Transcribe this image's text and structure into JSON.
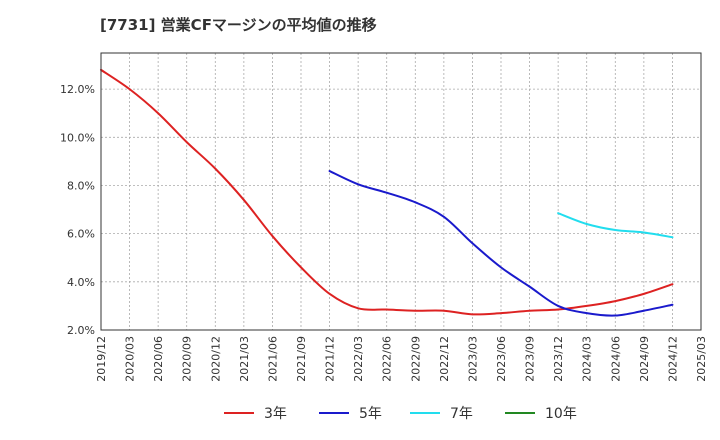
{
  "chart_data": {
    "type": "line",
    "title": "[7731]  営業CFマージンの平均値の推移",
    "xlabel": "",
    "ylabel": "",
    "x_ticks": [
      "2019/12",
      "2020/03",
      "2020/06",
      "2020/09",
      "2020/12",
      "2021/03",
      "2021/06",
      "2021/09",
      "2021/12",
      "2022/03",
      "2022/06",
      "2022/09",
      "2022/12",
      "2023/03",
      "2023/06",
      "2023/09",
      "2023/12",
      "2024/03",
      "2024/06",
      "2024/09",
      "2024/12",
      "2025/03"
    ],
    "y_ticks": [
      "2.0%",
      "4.0%",
      "6.0%",
      "8.0%",
      "10.0%",
      "12.0%"
    ],
    "ylim": [
      2.0,
      13.5
    ],
    "grid": true,
    "legend_position": "bottom",
    "series": [
      {
        "name": "3年",
        "color": "#dd2222",
        "x": [
          "2019/12",
          "2020/03",
          "2020/06",
          "2020/09",
          "2020/12",
          "2021/03",
          "2021/06",
          "2021/09",
          "2021/12",
          "2022/03",
          "2022/06",
          "2022/09",
          "2022/12",
          "2023/03",
          "2023/06",
          "2023/09",
          "2023/12",
          "2024/03",
          "2024/06",
          "2024/09",
          "2024/12"
        ],
        "values": [
          12.8,
          12.0,
          11.0,
          9.8,
          8.7,
          7.4,
          5.9,
          4.6,
          3.5,
          2.9,
          2.85,
          2.8,
          2.8,
          2.65,
          2.7,
          2.8,
          2.85,
          3.0,
          3.2,
          3.5,
          3.9
        ]
      },
      {
        "name": "5年",
        "color": "#1a1acc",
        "x": [
          "2021/12",
          "2022/03",
          "2022/06",
          "2022/09",
          "2022/12",
          "2023/03",
          "2023/06",
          "2023/09",
          "2023/12",
          "2024/03",
          "2024/06",
          "2024/09",
          "2024/12"
        ],
        "values": [
          8.6,
          8.05,
          7.7,
          7.3,
          6.7,
          5.6,
          4.6,
          3.8,
          3.0,
          2.7,
          2.6,
          2.8,
          3.05
        ]
      },
      {
        "name": "7年",
        "color": "#22ddee",
        "x": [
          "2023/12",
          "2024/03",
          "2024/06",
          "2024/09",
          "2024/12"
        ],
        "values": [
          6.85,
          6.4,
          6.15,
          6.05,
          5.85
        ]
      },
      {
        "name": "10年",
        "color": "#228822",
        "x": [],
        "values": []
      }
    ]
  }
}
